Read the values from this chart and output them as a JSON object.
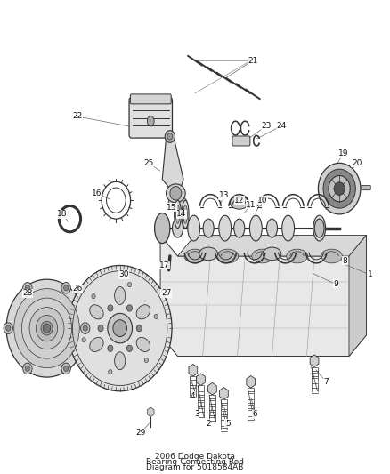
{
  "bg_color": "#ffffff",
  "line_color": "#333333",
  "label_fontsize": 6.5,
  "label_color": "#111111",
  "fig_width": 4.38,
  "fig_height": 5.33,
  "dpi": 100,
  "leaders": {
    "1": [
      0.955,
      0.415,
      0.88,
      0.44
    ],
    "2": [
      0.535,
      0.095,
      0.545,
      0.135
    ],
    "3": [
      0.505,
      0.115,
      0.52,
      0.145
    ],
    "4": [
      0.495,
      0.155,
      0.505,
      0.185
    ],
    "5": [
      0.585,
      0.095,
      0.575,
      0.135
    ],
    "6": [
      0.655,
      0.115,
      0.645,
      0.155
    ],
    "7": [
      0.84,
      0.185,
      0.81,
      0.215
    ],
    "8": [
      0.89,
      0.445,
      0.83,
      0.46
    ],
    "9": [
      0.865,
      0.395,
      0.8,
      0.42
    ],
    "10": [
      0.675,
      0.575,
      0.655,
      0.545
    ],
    "11": [
      0.645,
      0.565,
      0.625,
      0.545
    ],
    "12": [
      0.615,
      0.575,
      0.6,
      0.555
    ],
    "13": [
      0.575,
      0.585,
      0.565,
      0.565
    ],
    "14": [
      0.465,
      0.545,
      0.48,
      0.535
    ],
    "15": [
      0.44,
      0.56,
      0.47,
      0.545
    ],
    "16": [
      0.245,
      0.59,
      0.285,
      0.575
    ],
    "17": [
      0.42,
      0.435,
      0.435,
      0.44
    ],
    "18": [
      0.155,
      0.545,
      0.175,
      0.525
    ],
    "19": [
      0.885,
      0.675,
      0.855,
      0.635
    ],
    "20": [
      0.92,
      0.655,
      0.89,
      0.62
    ],
    "21": [
      0.65,
      0.875,
      0.575,
      0.835
    ],
    "22": [
      0.195,
      0.755,
      0.355,
      0.73
    ],
    "23": [
      0.685,
      0.735,
      0.635,
      0.705
    ],
    "24": [
      0.725,
      0.735,
      0.655,
      0.705
    ],
    "25": [
      0.38,
      0.655,
      0.415,
      0.635
    ],
    "26": [
      0.195,
      0.385,
      0.225,
      0.37
    ],
    "27": [
      0.425,
      0.375,
      0.395,
      0.365
    ],
    "28": [
      0.065,
      0.375,
      0.095,
      0.36
    ],
    "29": [
      0.36,
      0.075,
      0.385,
      0.1
    ],
    "30": [
      0.315,
      0.415,
      0.31,
      0.395
    ]
  }
}
